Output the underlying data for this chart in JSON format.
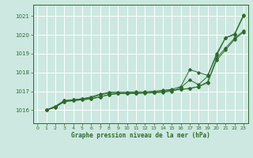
{
  "bg_color": "#cce8e0",
  "grid_color": "#ffffff",
  "line_color": "#2d6a2d",
  "title": "Graphe pression niveau de la mer (hPa)",
  "xlim": [
    -0.5,
    23.5
  ],
  "ylim": [
    1015.3,
    1021.6
  ],
  "yticks": [
    1016,
    1017,
    1018,
    1019,
    1020,
    1021
  ],
  "xticks": [
    0,
    1,
    2,
    3,
    4,
    5,
    6,
    7,
    8,
    9,
    10,
    11,
    12,
    13,
    14,
    15,
    16,
    17,
    18,
    19,
    20,
    21,
    22,
    23
  ],
  "series": [
    [
      1016.0,
      1016.2,
      1016.5,
      1016.55,
      1016.6,
      1016.7,
      1016.85,
      1016.95,
      1016.95,
      1016.95,
      1016.97,
      1016.97,
      1017.0,
      1017.05,
      1017.1,
      1017.25,
      1018.15,
      1018.0,
      1017.85,
      1018.9,
      1019.85,
      1020.05,
      1021.05
    ],
    [
      1016.0,
      1016.2,
      1016.5,
      1016.55,
      1016.6,
      1016.65,
      1016.8,
      1016.9,
      1016.9,
      1016.9,
      1016.9,
      1016.9,
      1016.92,
      1016.95,
      1017.0,
      1017.2,
      1017.6,
      1017.35,
      1017.8,
      1019.0,
      1019.85,
      1020.0,
      1021.0
    ],
    [
      1016.0,
      1016.15,
      1016.45,
      1016.5,
      1016.55,
      1016.6,
      1016.7,
      1016.82,
      1016.88,
      1016.88,
      1016.9,
      1016.92,
      1016.95,
      1017.0,
      1017.05,
      1017.1,
      1017.15,
      1017.25,
      1017.5,
      1018.75,
      1019.3,
      1019.82,
      1020.2
    ],
    [
      1016.0,
      1016.15,
      1016.45,
      1016.5,
      1016.55,
      1016.6,
      1016.7,
      1016.82,
      1016.88,
      1016.88,
      1016.9,
      1016.92,
      1016.95,
      1017.0,
      1017.05,
      1017.1,
      1017.15,
      1017.25,
      1017.45,
      1018.65,
      1019.2,
      1019.75,
      1020.15
    ]
  ]
}
